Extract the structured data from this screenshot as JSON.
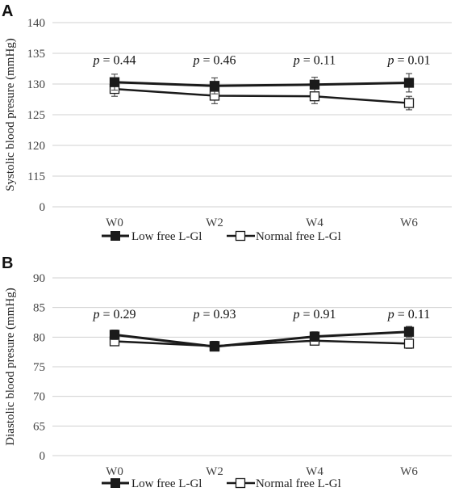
{
  "legend": {
    "series_1": "Low free L-Gl",
    "series_2": "Normal free L-Gl"
  },
  "chart_data": [
    {
      "panel": "A",
      "type": "line",
      "ylabel": "Systolic blood presure (mmHg)",
      "categories": [
        "W0",
        "W2",
        "W4",
        "W6"
      ],
      "y_ticks": [
        "0",
        "115",
        "120",
        "125",
        "130",
        "135",
        "140"
      ],
      "ylim": [
        115,
        140
      ],
      "axis_break": "0",
      "grid": true,
      "legend_position": "bottom",
      "p_values": [
        {
          "prefix": "p",
          "text": " = 0.44"
        },
        {
          "prefix": "p",
          "text": " = 0.46"
        },
        {
          "prefix": "p",
          "text": " = 0.11"
        },
        {
          "prefix": "p",
          "text": " = 0.01"
        }
      ],
      "series": [
        {
          "name": "Low free L-Gl",
          "marker": "filled-square",
          "values": [
            130.3,
            129.7,
            129.9,
            130.2
          ],
          "error": [
            1.3,
            1.3,
            1.2,
            1.5
          ]
        },
        {
          "name": "Normal free L-Gl",
          "marker": "open-square",
          "values": [
            129.2,
            128.1,
            128.0,
            126.9
          ],
          "error": [
            1.2,
            1.3,
            1.2,
            1.1
          ]
        }
      ]
    },
    {
      "panel": "B",
      "type": "line",
      "ylabel": "Diastolic blood presure (mmHg)",
      "categories": [
        "W0",
        "W2",
        "W4",
        "W6"
      ],
      "y_ticks": [
        "0",
        "65",
        "70",
        "75",
        "80",
        "85",
        "90"
      ],
      "ylim": [
        65,
        90
      ],
      "axis_break": "0",
      "grid": true,
      "legend_position": "bottom",
      "p_values": [
        {
          "prefix": "p",
          "text": " = 0.29"
        },
        {
          "prefix": "p",
          "text": " = 0.93"
        },
        {
          "prefix": "p",
          "text": " = 0.91"
        },
        {
          "prefix": "p",
          "text": " = 0.11"
        }
      ],
      "series": [
        {
          "name": "Low free L-Gl",
          "marker": "filled-square",
          "values": [
            80.4,
            78.4,
            80.1,
            80.9
          ],
          "error": [
            0.8,
            0.7,
            0.8,
            0.9
          ]
        },
        {
          "name": "Normal free L-Gl",
          "marker": "open-square",
          "values": [
            79.3,
            78.5,
            79.4,
            78.9
          ],
          "error": [
            0.7,
            0.8,
            0.7,
            0.8
          ]
        }
      ]
    }
  ]
}
